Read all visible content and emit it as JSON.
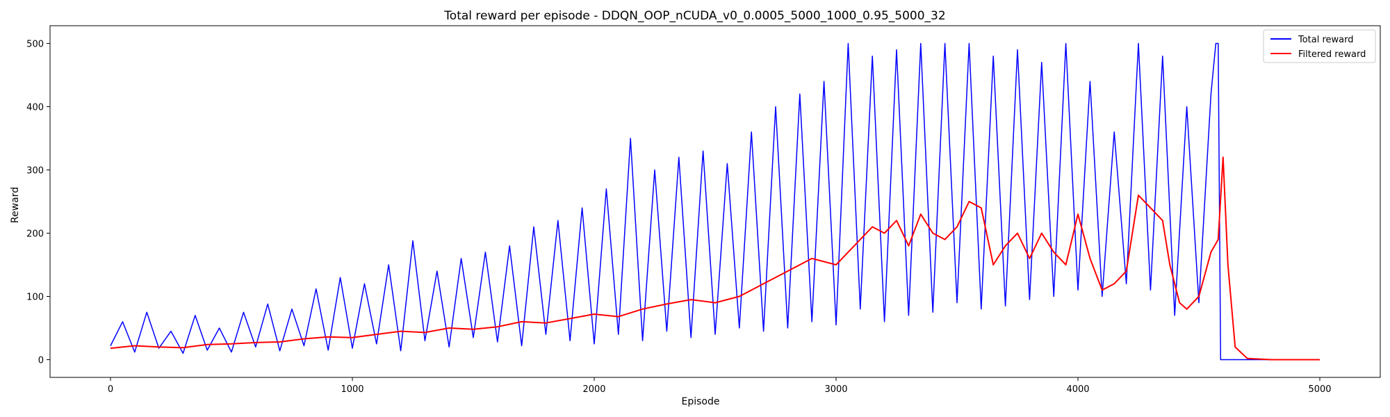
{
  "chart_data": {
    "type": "line",
    "title": "Total reward per episode - DDQN_OOP_nCUDA_v0_0.0005_5000_1000_0.95_5000_32",
    "xlabel": "Episode",
    "ylabel": "Reward",
    "xlim": [
      -250,
      5250
    ],
    "ylim": [
      -28,
      528
    ],
    "xticks": [
      0,
      1000,
      2000,
      3000,
      4000,
      5000
    ],
    "yticks": [
      0,
      100,
      200,
      300,
      400,
      500
    ],
    "grid": false,
    "legend": "top-right",
    "series": [
      {
        "name": "Total reward",
        "color": "#0000ff",
        "note_sampled": true,
        "x": [
          0,
          50,
          100,
          150,
          200,
          250,
          300,
          350,
          400,
          450,
          500,
          550,
          600,
          650,
          700,
          750,
          800,
          850,
          900,
          950,
          1000,
          1050,
          1100,
          1150,
          1200,
          1250,
          1300,
          1350,
          1400,
          1450,
          1500,
          1550,
          1600,
          1650,
          1700,
          1750,
          1800,
          1850,
          1900,
          1950,
          2000,
          2050,
          2100,
          2150,
          2200,
          2250,
          2300,
          2350,
          2400,
          2450,
          2500,
          2550,
          2600,
          2650,
          2700,
          2750,
          2800,
          2850,
          2900,
          2950,
          3000,
          3050,
          3100,
          3150,
          3200,
          3250,
          3300,
          3350,
          3400,
          3450,
          3500,
          3550,
          3600,
          3650,
          3700,
          3750,
          3800,
          3850,
          3900,
          3950,
          4000,
          4050,
          4100,
          4150,
          4200,
          4250,
          4300,
          4350,
          4400,
          4450,
          4500,
          4550,
          4570,
          4580,
          4590,
          4600,
          4650,
          4700,
          4800,
          4900,
          5000
        ],
        "y": [
          22,
          60,
          12,
          75,
          18,
          45,
          10,
          70,
          15,
          50,
          12,
          75,
          20,
          88,
          14,
          80,
          22,
          112,
          15,
          130,
          18,
          120,
          25,
          150,
          14,
          188,
          30,
          140,
          20,
          160,
          35,
          170,
          28,
          180,
          22,
          210,
          40,
          220,
          30,
          240,
          25,
          270,
          40,
          350,
          30,
          300,
          45,
          320,
          35,
          330,
          40,
          310,
          50,
          360,
          45,
          400,
          50,
          420,
          60,
          440,
          55,
          500,
          80,
          480,
          60,
          490,
          70,
          500,
          75,
          500,
          90,
          500,
          80,
          480,
          85,
          490,
          95,
          470,
          100,
          500,
          110,
          440,
          100,
          360,
          120,
          500,
          110,
          480,
          70,
          400,
          90,
          420,
          500,
          500,
          0,
          0,
          0,
          0,
          0,
          0,
          0
        ]
      },
      {
        "name": "Filtered reward",
        "color": "#ff0000",
        "x": [
          0,
          100,
          200,
          300,
          400,
          500,
          600,
          700,
          800,
          900,
          1000,
          1100,
          1200,
          1300,
          1400,
          1500,
          1600,
          1700,
          1800,
          1900,
          2000,
          2100,
          2200,
          2300,
          2400,
          2500,
          2600,
          2700,
          2800,
          2900,
          3000,
          3050,
          3100,
          3150,
          3200,
          3250,
          3300,
          3350,
          3400,
          3450,
          3500,
          3550,
          3600,
          3650,
          3700,
          3750,
          3800,
          3850,
          3900,
          3950,
          4000,
          4050,
          4100,
          4150,
          4200,
          4250,
          4300,
          4350,
          4380,
          4420,
          4450,
          4500,
          4550,
          4580,
          4600,
          4620,
          4650,
          4700,
          4800,
          4900,
          5000
        ],
        "y": [
          18,
          22,
          20,
          19,
          24,
          25,
          27,
          28,
          33,
          36,
          35,
          40,
          45,
          43,
          50,
          48,
          52,
          60,
          58,
          65,
          72,
          68,
          80,
          88,
          95,
          90,
          100,
          120,
          140,
          160,
          150,
          170,
          190,
          210,
          200,
          220,
          180,
          230,
          200,
          190,
          210,
          250,
          240,
          150,
          180,
          200,
          160,
          200,
          170,
          150,
          230,
          160,
          110,
          120,
          140,
          260,
          240,
          220,
          150,
          90,
          80,
          100,
          170,
          190,
          320,
          150,
          20,
          2,
          0,
          0,
          0
        ]
      }
    ]
  }
}
